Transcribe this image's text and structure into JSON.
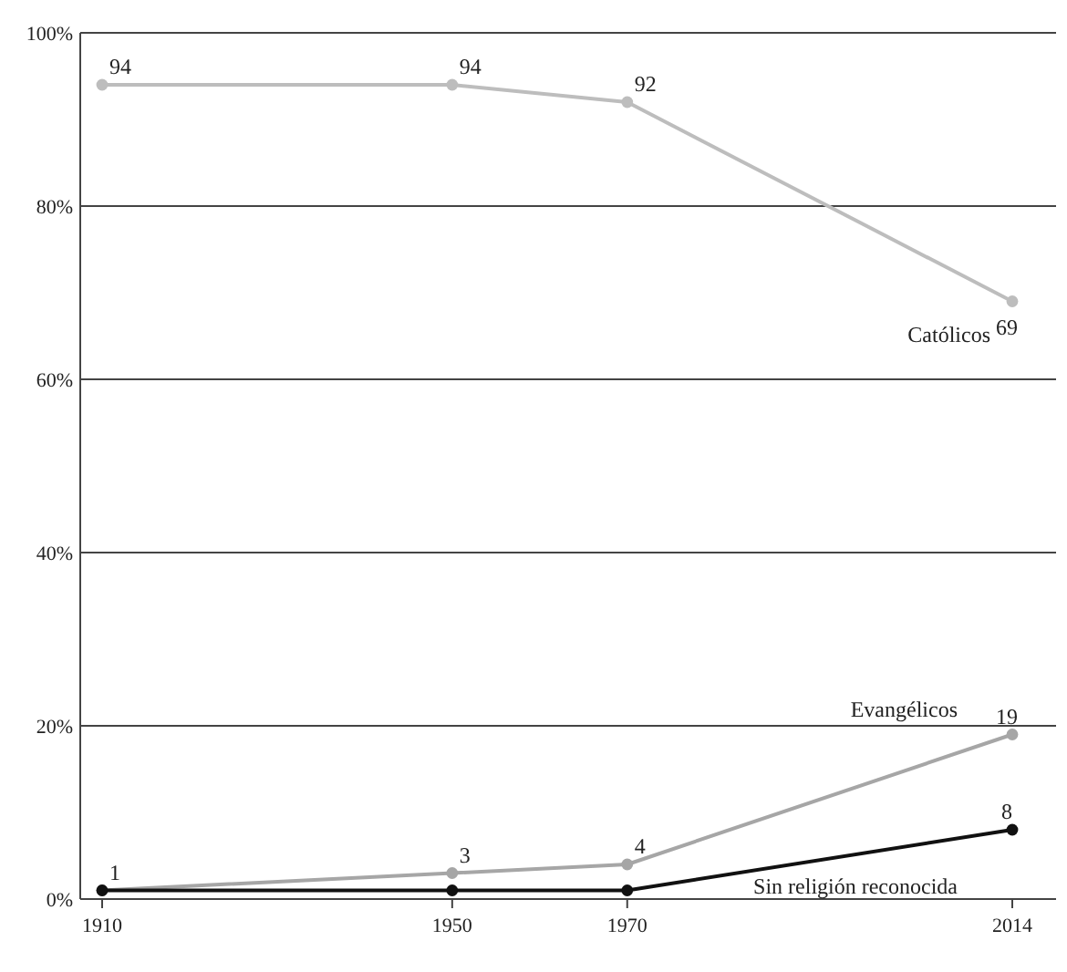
{
  "chart_data": {
    "type": "line",
    "x": [
      1910,
      1950,
      1970,
      2014
    ],
    "xlim": [
      1907.5,
      2019
    ],
    "xticks": [
      1910,
      1950,
      1970,
      2014
    ],
    "ylim": [
      0,
      100
    ],
    "yticks": [
      {
        "value": 0,
        "label": "0%"
      },
      {
        "value": 20,
        "label": "20%"
      },
      {
        "value": 40,
        "label": "40%"
      },
      {
        "value": 60,
        "label": "60%"
      },
      {
        "value": 80,
        "label": "80%"
      },
      {
        "value": 100,
        "label": "100%"
      }
    ],
    "grid": "y",
    "marker": "circle",
    "line_style": "solid",
    "series": [
      {
        "name": "Católicos",
        "color": "#bdbdbd",
        "values": [
          94,
          94,
          92,
          69
        ],
        "value_labels": [
          "94",
          "94",
          "92",
          "69"
        ]
      },
      {
        "name": "Evangélicos",
        "color": "#a6a6a6",
        "values": [
          1,
          3,
          4,
          19
        ],
        "value_labels": [
          "1",
          "3",
          "4",
          "19"
        ]
      },
      {
        "name": "Sin religión reconocida",
        "color": "#111111",
        "values": [
          1,
          1,
          1,
          8
        ],
        "value_labels": [
          null,
          null,
          null,
          "8"
        ]
      }
    ]
  }
}
